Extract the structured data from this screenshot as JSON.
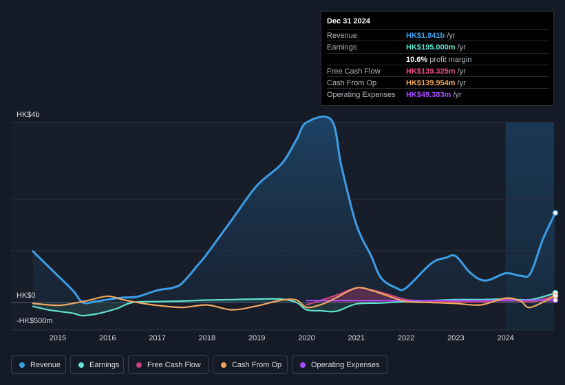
{
  "tooltip": {
    "date": "Dec 31 2024",
    "rows": [
      {
        "label": "Revenue",
        "value": "HK$1.841b",
        "unit": " /yr",
        "color": "#3d9ee8"
      },
      {
        "label": "Earnings",
        "value": "HK$195.000m",
        "unit": " /yr",
        "color": "#5fe3d0"
      },
      {
        "label": "",
        "value": "10.6%",
        "unit": " profit margin",
        "color": "#ffffff"
      },
      {
        "label": "Free Cash Flow",
        "value": "HK$139.325m",
        "unit": " /yr",
        "color": "#e8508a"
      },
      {
        "label": "Cash From Op",
        "value": "HK$139.954m",
        "unit": " /yr",
        "color": "#f0a860"
      },
      {
        "label": "Operating Expenses",
        "value": "HK$49.383m",
        "unit": " /yr",
        "color": "#a64dff"
      }
    ]
  },
  "legend": [
    {
      "label": "Revenue",
      "color": "#3d9ee8"
    },
    {
      "label": "Earnings",
      "color": "#5fe3d0"
    },
    {
      "label": "Free Cash Flow",
      "color": "#c9427a"
    },
    {
      "label": "Cash From Op",
      "color": "#f0a860"
    },
    {
      "label": "Operating Expenses",
      "color": "#a64dff"
    }
  ],
  "chart_data": {
    "type": "line",
    "title": "",
    "xlabel": "",
    "ylabel": "",
    "y_tick_labels": [
      "HK$4b",
      "HK$0",
      "-HK$500m"
    ],
    "ylim": [
      -500,
      4000
    ],
    "xlim": [
      2014.0,
      2025.0
    ],
    "x_ticks": [
      2015,
      2016,
      2017,
      2018,
      2019,
      2020,
      2021,
      2022,
      2023,
      2024
    ],
    "x_tick_labels": [
      "2015",
      "2016",
      "2017",
      "2018",
      "2019",
      "2020",
      "2021",
      "2022",
      "2023",
      "2024"
    ],
    "forecast_start": 2024.0,
    "series": [
      {
        "name": "Revenue",
        "color": "#3d9ee8",
        "fill": true,
        "x": [
          2014.5,
          2014.9,
          2015.3,
          2015.5,
          2015.75,
          2016.0,
          2016.3,
          2016.6,
          2017.0,
          2017.3,
          2017.5,
          2017.8,
          2018.0,
          2018.5,
          2019.0,
          2019.5,
          2019.8,
          2020.0,
          2020.5,
          2020.7,
          2021.0,
          2021.3,
          2021.5,
          2021.8,
          2022.0,
          2022.5,
          2022.8,
          2023.0,
          2023.3,
          2023.6,
          2024.0,
          2024.3,
          2024.5,
          2024.75,
          2025.0
        ],
        "y": [
          1050,
          650,
          250,
          0,
          20,
          60,
          100,
          120,
          250,
          300,
          400,
          750,
          1000,
          1700,
          2400,
          2850,
          3350,
          3700,
          3750,
          2800,
          1600,
          950,
          500,
          300,
          300,
          800,
          920,
          950,
          600,
          450,
          600,
          550,
          600,
          1300,
          1841
        ]
      },
      {
        "name": "Earnings",
        "color": "#5fe3d0",
        "fill": true,
        "x": [
          2014.5,
          2014.8,
          2015.0,
          2015.3,
          2015.5,
          2015.8,
          2016.0,
          2016.2,
          2016.5,
          2017.0,
          2017.5,
          2018.0,
          2018.5,
          2019.0,
          2019.5,
          2019.8,
          2020.0,
          2020.3,
          2020.6,
          2021.0,
          2021.5,
          2022.0,
          2022.5,
          2023.0,
          2023.5,
          2024.0,
          2024.5,
          2025.0
        ],
        "y": [
          -80,
          -150,
          -180,
          -220,
          -270,
          -230,
          -180,
          -120,
          0,
          20,
          30,
          50,
          60,
          70,
          70,
          0,
          -150,
          -170,
          -180,
          -30,
          -10,
          20,
          40,
          60,
          60,
          70,
          60,
          195
        ]
      },
      {
        "name": "Free Cash Flow",
        "color": "#c9427a",
        "fill": true,
        "x": [
          2020.0,
          2020.3,
          2020.6,
          2021.0,
          2021.3,
          2021.6,
          2022.0,
          2022.5,
          2023.0,
          2023.5,
          2024.0,
          2024.5,
          2025.0
        ],
        "y": [
          -50,
          50,
          150,
          300,
          260,
          180,
          60,
          30,
          20,
          10,
          60,
          20,
          139
        ]
      },
      {
        "name": "Cash From Op",
        "color": "#f0a860",
        "fill": false,
        "x": [
          2014.5,
          2015.0,
          2015.3,
          2015.6,
          2016.0,
          2016.3,
          2016.6,
          2017.0,
          2017.5,
          2018.0,
          2018.5,
          2019.0,
          2019.5,
          2019.8,
          2020.0,
          2020.3,
          2020.6,
          2021.0,
          2021.3,
          2021.6,
          2022.0,
          2022.5,
          2023.0,
          2023.5,
          2024.0,
          2024.3,
          2024.5,
          2025.0
        ],
        "y": [
          -20,
          -60,
          -20,
          40,
          130,
          60,
          0,
          -60,
          -100,
          -50,
          -150,
          -70,
          50,
          50,
          -100,
          -40,
          100,
          300,
          250,
          150,
          20,
          0,
          -20,
          -50,
          90,
          30,
          -100,
          140
        ]
      },
      {
        "name": "Operating Expenses",
        "color": "#a64dff",
        "fill": false,
        "x": [
          2020.0,
          2020.5,
          2021.0,
          2021.5,
          2022.0,
          2022.5,
          2023.0,
          2023.5,
          2024.0,
          2024.5,
          2025.0
        ],
        "y": [
          40,
          40,
          40,
          40,
          40,
          40,
          40,
          40,
          45,
          45,
          49
        ]
      }
    ]
  }
}
